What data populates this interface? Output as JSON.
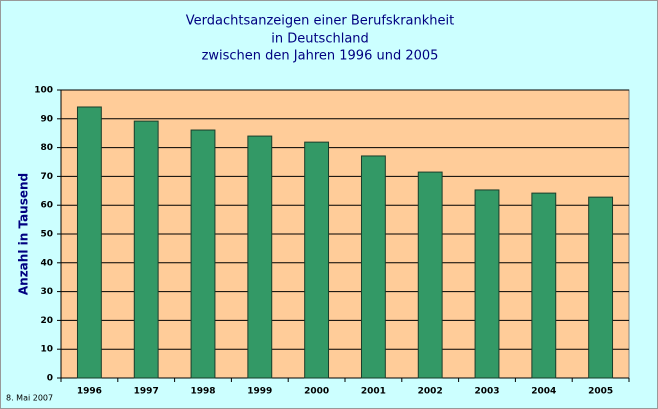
{
  "chart_data": {
    "type": "bar",
    "title": [
      "Verdachtsanzeigen einer Berufskrankheit",
      "in Deutschland",
      "zwischen den Jahren 1996 und 2005"
    ],
    "y_label": "Anzahl in Tausend",
    "footnote": "8. Mai 2007",
    "categories": [
      "1996",
      "1997",
      "1998",
      "1999",
      "2000",
      "2001",
      "2002",
      "2003",
      "2004",
      "2005"
    ],
    "values": [
      94.1,
      89.2,
      86.1,
      84.0,
      81.9,
      77.1,
      71.5,
      65.3,
      64.2,
      62.8
    ],
    "color": "#339966",
    "ylim": [
      0,
      100
    ],
    "yticks": [
      0,
      10,
      20,
      30,
      40,
      50,
      60,
      70,
      80,
      90,
      100
    ],
    "grid": true
  }
}
